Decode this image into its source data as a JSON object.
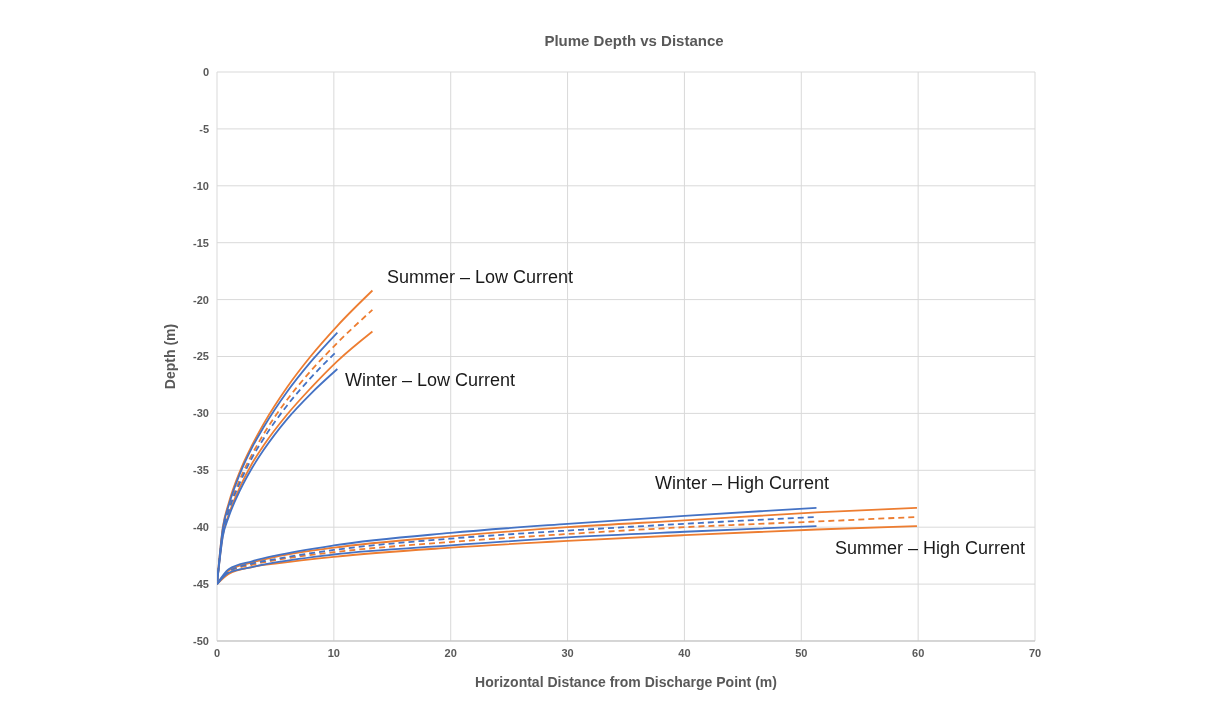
{
  "chart_data": {
    "type": "line",
    "title": "Plume Depth vs Distance",
    "xlabel": "Horizontal Distance from Discharge Point (m)",
    "ylabel": "Depth (m)",
    "xlim": [
      0,
      70
    ],
    "xticks": [
      0,
      10,
      20,
      30,
      40,
      50,
      60,
      70
    ],
    "ylim": [
      -50,
      0
    ],
    "yticks": [
      -50,
      -45,
      -40,
      -35,
      -30,
      -25,
      -20,
      -15,
      -10,
      -5,
      0
    ],
    "grid": true,
    "legend": false,
    "marker": "none",
    "series": [
      {
        "color": "#ed7d31",
        "line_style": "solid",
        "x": [
          0,
          0.5,
          1,
          2,
          3,
          4,
          6,
          8,
          10.3,
          13.3
        ],
        "values": [
          -45,
          -40.0,
          -37.9,
          -35.0,
          -32.8,
          -30.9,
          -27.7,
          -25.0,
          -22.3,
          -19.2
        ]
      },
      {
        "color": "#ed7d31",
        "line_style": "dashed",
        "x": [
          0,
          0.5,
          1,
          2,
          3,
          4,
          6,
          8,
          10.3,
          13.3
        ],
        "values": [
          -45,
          -40.3,
          -38.4,
          -35.7,
          -33.6,
          -31.8,
          -28.8,
          -26.3,
          -23.8,
          -20.9
        ]
      },
      {
        "color": "#ed7d31",
        "line_style": "solid",
        "x": [
          0,
          0.5,
          1,
          2,
          3,
          4,
          6,
          8,
          10.3,
          13.3
        ],
        "values": [
          -45,
          -40.7,
          -38.9,
          -36.4,
          -34.4,
          -32.8,
          -30.1,
          -27.8,
          -25.4,
          -22.8
        ]
      },
      {
        "color": "#4472c4",
        "line_style": "solid",
        "x": [
          0,
          0.5,
          1,
          2,
          3,
          4,
          6,
          8,
          10.3
        ],
        "values": [
          -45,
          -40.1,
          -38.1,
          -35.2,
          -33.0,
          -31.2,
          -28.1,
          -25.5,
          -22.9
        ]
      },
      {
        "color": "#4472c4",
        "line_style": "dashed",
        "x": [
          0,
          0.5,
          1,
          2,
          3,
          4,
          6,
          8,
          10.3
        ],
        "values": [
          -45,
          -40.5,
          -38.6,
          -36.0,
          -33.9,
          -32.2,
          -29.3,
          -26.9,
          -24.5
        ]
      },
      {
        "color": "#4472c4",
        "line_style": "solid",
        "x": [
          0,
          0.5,
          1,
          2,
          3,
          4,
          6,
          8,
          10.3
        ],
        "values": [
          -45,
          -40.8,
          -39.1,
          -36.7,
          -34.8,
          -33.2,
          -30.5,
          -28.3,
          -26.1
        ]
      },
      {
        "color": "#ed7d31",
        "line_style": "solid",
        "x": [
          0,
          1,
          3,
          5,
          10,
          20,
          30,
          40,
          51.3,
          59.9
        ],
        "values": [
          -45,
          -43.8,
          -43.1,
          -42.6,
          -41.8,
          -40.8,
          -40.0,
          -39.4,
          -38.7,
          -38.3
        ]
      },
      {
        "color": "#ed7d31",
        "line_style": "dashed",
        "x": [
          0,
          1,
          3,
          5,
          10,
          20,
          30,
          40,
          51.3,
          59.9
        ],
        "values": [
          -45,
          -43.9,
          -43.3,
          -42.9,
          -42.2,
          -41.3,
          -40.6,
          -40.0,
          -39.5,
          -39.1
        ]
      },
      {
        "color": "#ed7d31",
        "line_style": "solid",
        "x": [
          0,
          1,
          3,
          5,
          10,
          20,
          30,
          40,
          51.3,
          59.9
        ],
        "values": [
          -45,
          -44.1,
          -43.5,
          -43.2,
          -42.6,
          -41.8,
          -41.2,
          -40.7,
          -40.2,
          -39.9
        ]
      },
      {
        "color": "#4472c4",
        "line_style": "solid",
        "x": [
          0,
          1,
          3,
          5,
          10,
          20,
          30,
          40,
          51.3
        ],
        "values": [
          -45,
          -43.7,
          -43.0,
          -42.5,
          -41.6,
          -40.5,
          -39.7,
          -39.0,
          -38.3
        ]
      },
      {
        "color": "#4472c4",
        "line_style": "dashed",
        "x": [
          0,
          1,
          3,
          5,
          10,
          20,
          30,
          40,
          51.3
        ],
        "values": [
          -45,
          -43.9,
          -43.2,
          -42.8,
          -42.0,
          -41.0,
          -40.3,
          -39.7,
          -39.1
        ]
      },
      {
        "color": "#4472c4",
        "line_style": "solid",
        "x": [
          0,
          1,
          3,
          5,
          10,
          20,
          30,
          40,
          51.3
        ],
        "values": [
          -45,
          -44.0,
          -43.5,
          -43.1,
          -42.4,
          -41.6,
          -40.9,
          -40.4,
          -39.9
        ]
      }
    ],
    "annotations": [
      "Summer – Low Current",
      "Winter – Low Current",
      "Winter – High Current",
      "Summer – High Current"
    ]
  }
}
